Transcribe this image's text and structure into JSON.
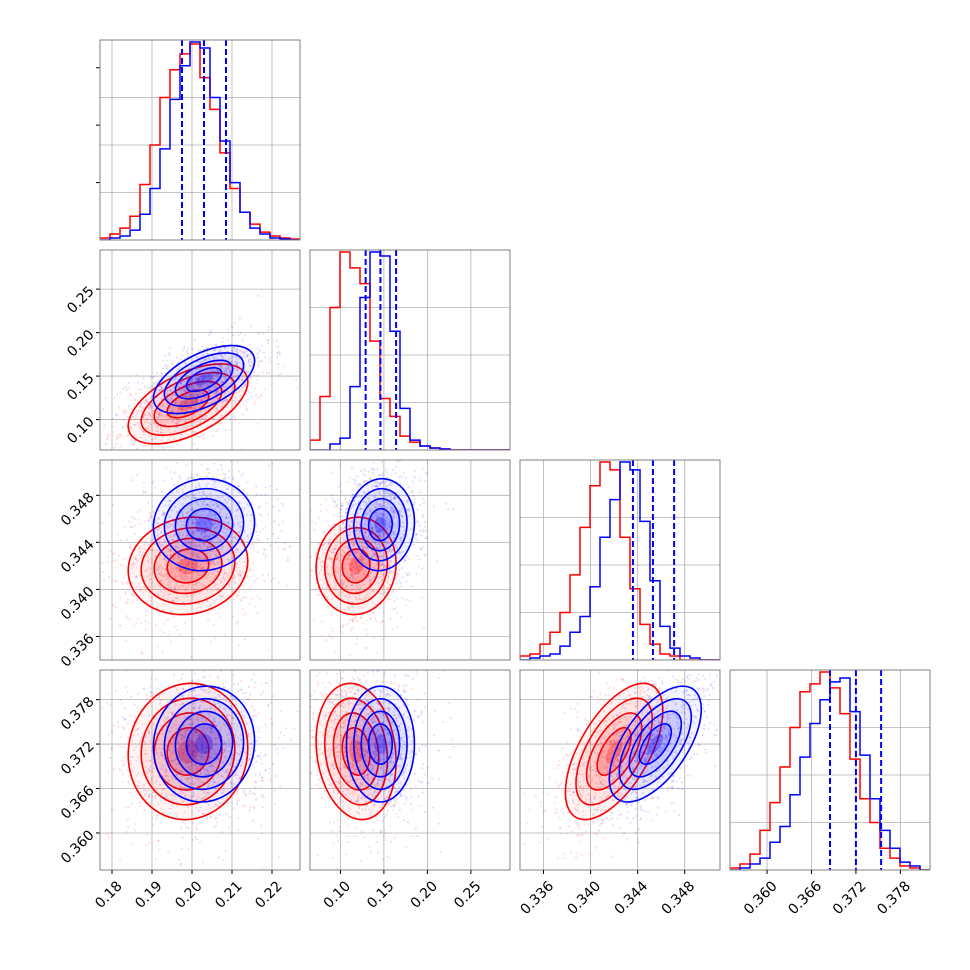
{
  "colors": {
    "red": "#ff0000",
    "blue": "#0000ff",
    "grid": "#b0b0b0",
    "frame": "#808080"
  },
  "chart_data": {
    "type": "corner",
    "grid": true,
    "parameters": [
      {
        "range": [
          0.177,
          0.227
        ],
        "ticks": [
          0.18,
          0.19,
          0.2,
          0.21,
          0.22
        ],
        "tick_labels": [
          "0.18",
          "0.19",
          "0.20",
          "0.21",
          "0.22"
        ]
      },
      {
        "range": [
          0.065,
          0.295
        ],
        "ticks": [
          0.1,
          0.15,
          0.2,
          0.25
        ],
        "tick_labels": [
          "0.10",
          "0.15",
          "0.20",
          "0.25"
        ]
      },
      {
        "range": [
          0.334,
          0.351
        ],
        "ticks": [
          0.336,
          0.34,
          0.344,
          0.348
        ],
        "tick_labels": [
          "0.336",
          "0.340",
          "0.344",
          "0.348"
        ]
      },
      {
        "range": [
          0.355,
          0.382
        ],
        "ticks": [
          0.36,
          0.366,
          0.372,
          0.378
        ],
        "tick_labels": [
          "0.360",
          "0.366",
          "0.372",
          "0.378"
        ]
      }
    ],
    "series": [
      {
        "color": "red",
        "means": [
          0.199,
          0.118,
          0.342,
          0.371
        ],
        "sigmas": [
          0.0065,
          0.02,
          0.0018,
          0.004
        ],
        "correlations": {
          "1-0": 0.55,
          "2-0": 0.1,
          "2-1": 0.05,
          "3-0": 0.05,
          "3-1": -0.15,
          "3-2": 0.6
        },
        "histograms": [
          [
            0.01,
            0.03,
            0.06,
            0.12,
            0.28,
            0.48,
            0.72,
            0.86,
            0.94,
            0.99,
            0.82,
            0.66,
            0.44,
            0.26,
            0.14,
            0.08,
            0.04,
            0.02,
            0.01,
            0.005
          ],
          [
            0.05,
            0.27,
            0.72,
            1.0,
            0.92,
            0.84,
            0.55,
            0.26,
            0.17,
            0.07,
            0.04,
            0.02,
            0.01,
            0.005,
            0.0,
            0.0,
            0.0,
            0.0,
            0.0,
            0.0
          ],
          [
            0.02,
            0.03,
            0.08,
            0.14,
            0.24,
            0.43,
            0.67,
            0.88,
            1.0,
            0.96,
            0.62,
            0.36,
            0.18,
            0.08,
            0.03,
            0.02,
            0.0,
            0.0,
            0.0,
            0.0
          ],
          [
            0.01,
            0.03,
            0.08,
            0.2,
            0.34,
            0.52,
            0.72,
            0.9,
            0.94,
            1.0,
            0.92,
            0.79,
            0.56,
            0.36,
            0.24,
            0.11,
            0.06,
            0.02,
            0.01,
            0.0
          ]
        ]
      },
      {
        "color": "blue",
        "means": [
          0.203,
          0.146,
          0.3455,
          0.372
        ],
        "sigmas": [
          0.0055,
          0.017,
          0.0017,
          0.0034
        ],
        "correlations": {
          "1-0": 0.55,
          "2-0": 0.05,
          "2-1": 0.05,
          "3-0": 0.05,
          "3-1": 0.0,
          "3-2": 0.6
        },
        "histograms": [
          [
            0.0,
            0.01,
            0.02,
            0.05,
            0.13,
            0.26,
            0.46,
            0.71,
            0.88,
            1.0,
            0.97,
            0.72,
            0.5,
            0.29,
            0.14,
            0.06,
            0.03,
            0.01,
            0.005,
            0.0
          ],
          [
            0.0,
            0.0,
            0.03,
            0.06,
            0.32,
            0.77,
            1.0,
            0.98,
            0.6,
            0.21,
            0.05,
            0.02,
            0.01,
            0.005,
            0.0,
            0.0,
            0.0,
            0.0,
            0.0,
            0.0
          ],
          [
            0.0,
            0.01,
            0.02,
            0.03,
            0.07,
            0.14,
            0.22,
            0.37,
            0.62,
            0.81,
            1.0,
            0.96,
            0.7,
            0.4,
            0.17,
            0.06,
            0.02,
            0.01,
            0.0,
            0.0
          ],
          [
            0.0,
            0.01,
            0.03,
            0.06,
            0.14,
            0.22,
            0.38,
            0.57,
            0.74,
            0.86,
            0.95,
            0.97,
            0.8,
            0.58,
            0.36,
            0.2,
            0.11,
            0.04,
            0.02,
            0.0
          ]
        ],
        "quantiles": [
          [
            0.1975,
            0.203,
            0.2085
          ],
          [
            0.129,
            0.146,
            0.164
          ],
          [
            0.3436,
            0.3453,
            0.3471
          ],
          [
            0.3685,
            0.372,
            0.3754
          ]
        ]
      }
    ]
  }
}
